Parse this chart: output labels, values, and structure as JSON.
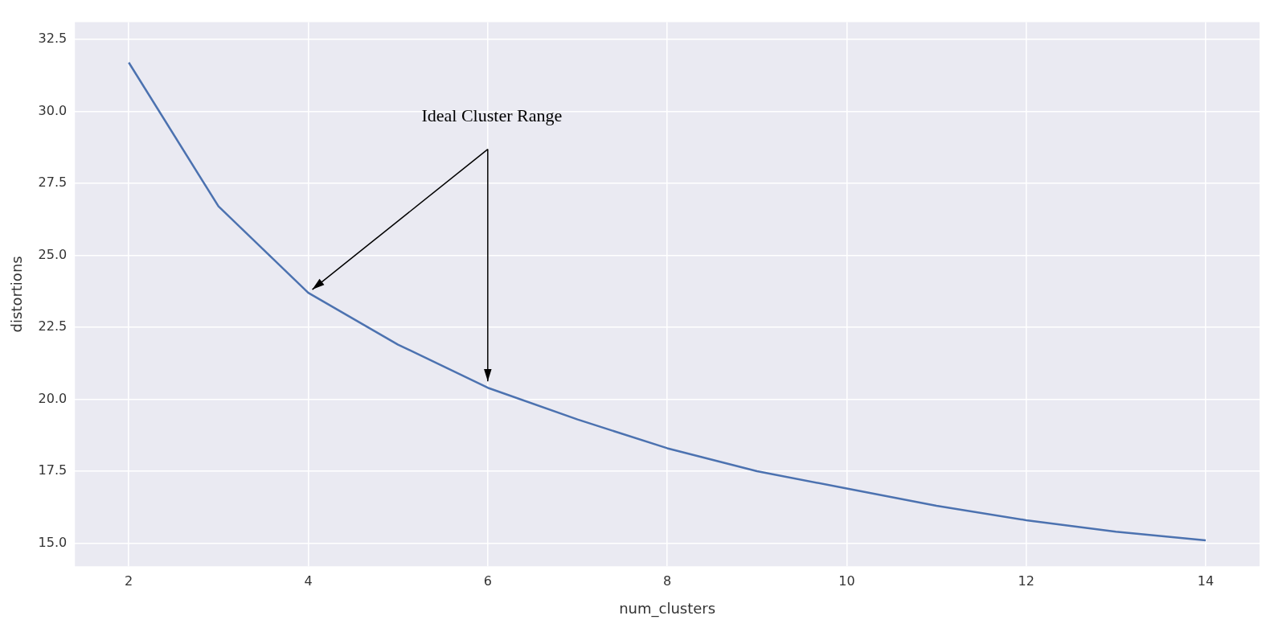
{
  "chart_data": {
    "type": "line",
    "xlabel": "num_clusters",
    "ylabel": "distortions",
    "x": [
      2,
      3,
      4,
      5,
      6,
      7,
      8,
      9,
      10,
      11,
      12,
      13,
      14
    ],
    "series": [
      {
        "color": "#4c72b0",
        "values": [
          31.7,
          26.7,
          23.7,
          21.9,
          20.4,
          19.3,
          18.3,
          17.5,
          16.9,
          16.3,
          15.8,
          15.4,
          15.1
        ]
      }
    ],
    "xlim": [
      1.4,
      14.6
    ],
    "xticks": [
      2,
      4,
      6,
      8,
      10,
      12,
      14
    ],
    "ylim": [
      14.2,
      33.1
    ],
    "yticks": [
      {
        "value": 15,
        "label": "15.0"
      },
      {
        "value": 17.5,
        "label": "17.5"
      },
      {
        "value": 20,
        "label": "20.0"
      },
      {
        "value": 22.5,
        "label": "22.5"
      },
      {
        "value": 25,
        "label": "25.0"
      },
      {
        "value": 27.5,
        "label": "27.5"
      },
      {
        "value": 30,
        "label": "30.0"
      },
      {
        "value": 32.5,
        "label": "32.5"
      }
    ],
    "grid": true,
    "legend": false,
    "marker": "none",
    "line_style": "solid",
    "annotations": [
      "Ideal Cluster Range"
    ]
  }
}
